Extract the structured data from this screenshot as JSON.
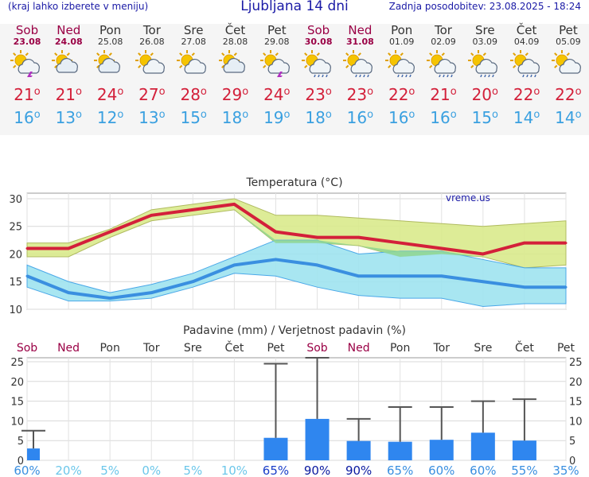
{
  "header": {
    "left": "(kraj lahko izberete v meniju)",
    "title": "Ljubljana 14 dni",
    "updated": "Zadnja posodobitev: 23.08.2025 - 18:24"
  },
  "days": [
    {
      "name": "Sob",
      "date": "23.08",
      "weekend": true,
      "icon": "sun-cloud-thunder-icon",
      "tmax": "21",
      "tmin": "16"
    },
    {
      "name": "Ned",
      "date": "24.08",
      "weekend": true,
      "icon": "cloud-sun-icon",
      "tmax": "21",
      "tmin": "13"
    },
    {
      "name": "Pon",
      "date": "25.08",
      "weekend": false,
      "icon": "cloud-sun-icon",
      "tmax": "24",
      "tmin": "12"
    },
    {
      "name": "Tor",
      "date": "26.08",
      "weekend": false,
      "icon": "sun-cloud-icon",
      "tmax": "27",
      "tmin": "13"
    },
    {
      "name": "Sre",
      "date": "27.08",
      "weekend": false,
      "icon": "sun-cloud-icon",
      "tmax": "28",
      "tmin": "15"
    },
    {
      "name": "Čet",
      "date": "28.08",
      "weekend": false,
      "icon": "cloud-sun-icon",
      "tmax": "29",
      "tmin": "18"
    },
    {
      "name": "Pet",
      "date": "29.08",
      "weekend": false,
      "icon": "sun-cloud-thunder-icon",
      "tmax": "24",
      "tmin": "19"
    },
    {
      "name": "Sob",
      "date": "30.08",
      "weekend": true,
      "icon": "sun-cloud-rain-icon",
      "tmax": "23",
      "tmin": "18"
    },
    {
      "name": "Ned",
      "date": "31.08",
      "weekend": true,
      "icon": "sun-cloud-rain-icon",
      "tmax": "23",
      "tmin": "16"
    },
    {
      "name": "Pon",
      "date": "01.09",
      "weekend": false,
      "icon": "sun-cloud-rain-icon",
      "tmax": "22",
      "tmin": "16"
    },
    {
      "name": "Tor",
      "date": "02.09",
      "weekend": false,
      "icon": "sun-cloud-rain-icon",
      "tmax": "21",
      "tmin": "16"
    },
    {
      "name": "Sre",
      "date": "03.09",
      "weekend": false,
      "icon": "sun-cloud-rain-icon",
      "tmax": "20",
      "tmin": "15"
    },
    {
      "name": "Čet",
      "date": "04.09",
      "weekend": false,
      "icon": "sun-cloud-rain-icon",
      "tmax": "22",
      "tmin": "14"
    },
    {
      "name": "Pet",
      "date": "05.09",
      "weekend": false,
      "icon": "sun-cloud-icon",
      "tmax": "22",
      "tmin": "14"
    }
  ],
  "colors": {
    "max_line": "#d3203a",
    "min_line": "#3a8fe0",
    "max_band": "#d9ea8c",
    "min_band": "#9fe3f0",
    "overlap": "#8fd68f",
    "bar": "#2f86ef",
    "weekend": "#9a0045"
  },
  "chart_data": [
    {
      "type": "line",
      "title": "Temperatura (°C)",
      "watermark": "vreme.us",
      "categories": [
        "Sob",
        "Ned",
        "Pon",
        "Tor",
        "Sre",
        "Čet",
        "Pet",
        "Sob",
        "Ned",
        "Pon",
        "Tor",
        "Sre",
        "Čet",
        "Pet"
      ],
      "ylim": [
        10,
        31
      ],
      "yticks": [
        10,
        15,
        20,
        25,
        30
      ],
      "grid": true,
      "series": [
        {
          "values": [
            21,
            21,
            24,
            27,
            28,
            29,
            24,
            23,
            23,
            22,
            21,
            20,
            22,
            22
          ]
        },
        {
          "values": [
            16,
            13,
            12,
            13,
            15,
            18,
            19,
            18,
            16,
            16,
            16,
            15,
            14,
            14
          ]
        }
      ],
      "max_band_high": [
        22,
        22,
        24.5,
        28,
        29,
        30,
        27,
        27,
        26.5,
        26,
        25.5,
        25,
        25.5,
        26
      ],
      "max_band_low": [
        19.5,
        19.5,
        23,
        26,
        27,
        28,
        22,
        22,
        21.5,
        19.5,
        20,
        19.5,
        17.5,
        18
      ],
      "min_band_high": [
        18,
        15,
        13,
        14.5,
        16.5,
        19.5,
        22.5,
        22.5,
        20,
        20.5,
        20.5,
        19,
        17.5,
        17.5
      ],
      "min_band_low": [
        14,
        11.5,
        11.5,
        12,
        14,
        16.5,
        16,
        14,
        12.5,
        12,
        12,
        10.5,
        11,
        11
      ]
    },
    {
      "type": "bar",
      "title": "Padavine (mm) / Verjetnost padavin (%)",
      "categories": [
        "Sob",
        "Ned",
        "Pon",
        "Tor",
        "Sre",
        "Čet",
        "Pet",
        "Sob",
        "Ned",
        "Pon",
        "Tor",
        "Sre",
        "Čet",
        "Pet"
      ],
      "ylim": [
        0,
        26
      ],
      "yticks": [
        0,
        5,
        10,
        15,
        20,
        25
      ],
      "values": [
        3,
        0,
        0,
        0,
        0,
        0,
        5.7,
        10.5,
        4.9,
        4.7,
        5.2,
        7,
        5,
        0
      ],
      "error_high": [
        7.5,
        0,
        0,
        0,
        0,
        0,
        24.5,
        26,
        10.5,
        13.5,
        13.5,
        15,
        15.5,
        0
      ],
      "probability": [
        "60%",
        "20%",
        "5%",
        "0%",
        "5%",
        "10%",
        "65%",
        "90%",
        "90%",
        "65%",
        "60%",
        "60%",
        "55%",
        "35%"
      ],
      "probability_colors": [
        "#3a8fe0",
        "#6cc7ea",
        "#6cc7ea",
        "#6cc7ea",
        "#6cc7ea",
        "#6cc7ea",
        "#1a3ec8",
        "#0a1aa0",
        "#0a1aa0",
        "#3a8fe0",
        "#3a8fe0",
        "#3a8fe0",
        "#3a8fe0",
        "#3a8fe0"
      ]
    }
  ]
}
